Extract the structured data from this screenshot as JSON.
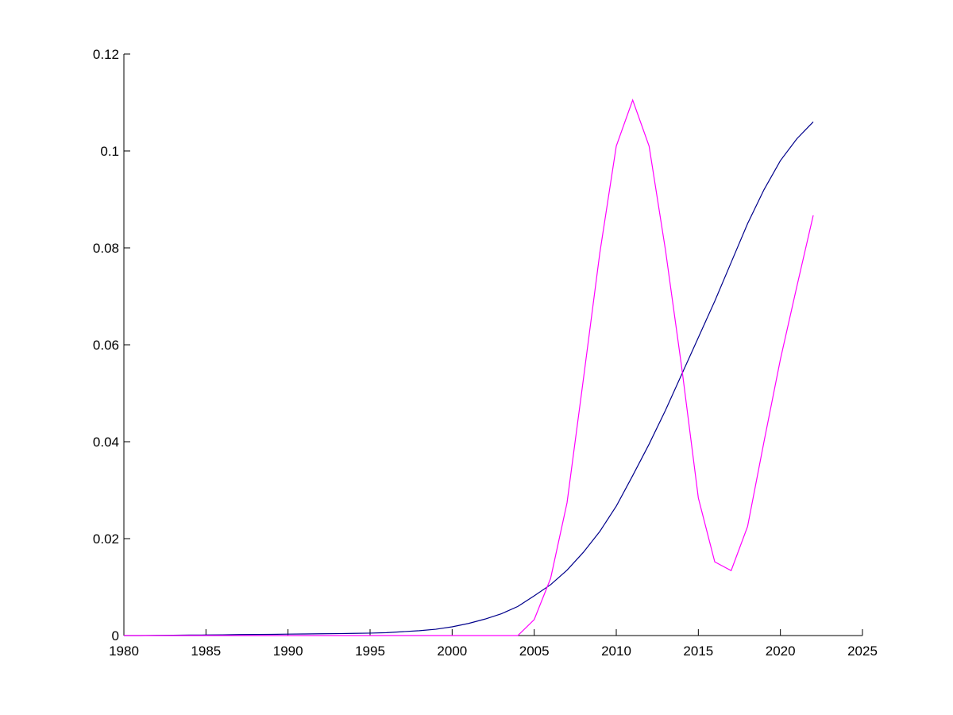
{
  "chart_data": {
    "type": "line",
    "x": [
      1980,
      1981,
      1982,
      1983,
      1984,
      1985,
      1986,
      1987,
      1988,
      1989,
      1990,
      1991,
      1992,
      1993,
      1994,
      1995,
      1996,
      1997,
      1998,
      1999,
      2000,
      2001,
      2002,
      2003,
      2004,
      2005,
      2006,
      2007,
      2008,
      2009,
      2010,
      2011,
      2012,
      2013,
      2014,
      2015,
      2016,
      2017,
      2018,
      2019,
      2020,
      2021,
      2022
    ],
    "series": [
      {
        "color": "#00008b",
        "values": [
          0,
          0,
          5e-05,
          7e-05,
          0.0001,
          0.00012,
          0.00015,
          0.0002,
          0.00022,
          0.00025,
          0.0003,
          0.00033,
          0.00037,
          0.0004,
          0.00045,
          0.0005,
          0.0006,
          0.0008,
          0.001,
          0.0013,
          0.0018,
          0.0025,
          0.0034,
          0.0045,
          0.006,
          0.0082,
          0.0105,
          0.0135,
          0.0172,
          0.0215,
          0.0267,
          0.033,
          0.0395,
          0.0465,
          0.054,
          0.0615,
          0.069,
          0.077,
          0.085,
          0.092,
          0.098,
          0.1025,
          0.106
        ]
      },
      {
        "color": "#ff00ff",
        "values": [
          0,
          0,
          0,
          0,
          0,
          0,
          0,
          0,
          0,
          0,
          0,
          0,
          0,
          0,
          0,
          0,
          0,
          0,
          0,
          0,
          0,
          0,
          0,
          0,
          0,
          0.0033,
          0.0118,
          0.0274,
          0.053,
          0.079,
          0.101,
          0.1105,
          0.101,
          0.0795,
          0.055,
          0.0284,
          0.0152,
          0.0134,
          0.0225,
          0.04,
          0.057,
          0.072,
          0.0867
        ]
      }
    ],
    "xlim": [
      1980,
      2025
    ],
    "xticks": [
      1980,
      1985,
      1990,
      1995,
      2000,
      2005,
      2010,
      2015,
      2020,
      2025
    ],
    "ylim": [
      0,
      0.12
    ],
    "yticks": [
      0,
      0.02,
      0.04,
      0.06,
      0.08,
      0.1,
      0.12
    ]
  }
}
